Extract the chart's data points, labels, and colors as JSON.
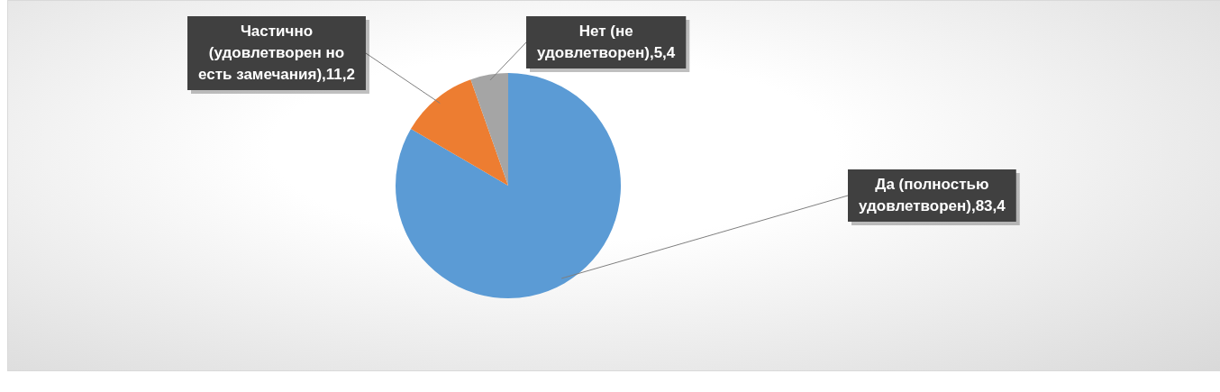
{
  "chart_data": {
    "type": "pie",
    "categories": [
      "Да (полностью удовлетворен)",
      "Частично (удовлетворен но есть замечания)",
      "Нет (не удовлетворен)"
    ],
    "values": [
      83.4,
      11.2,
      5.4
    ],
    "colors": [
      "#5b9bd5",
      "#ed7d31",
      "#a5a5a5"
    ],
    "value_labels": [
      "83,4",
      "11,2",
      "5,4"
    ],
    "legend": false
  }
}
